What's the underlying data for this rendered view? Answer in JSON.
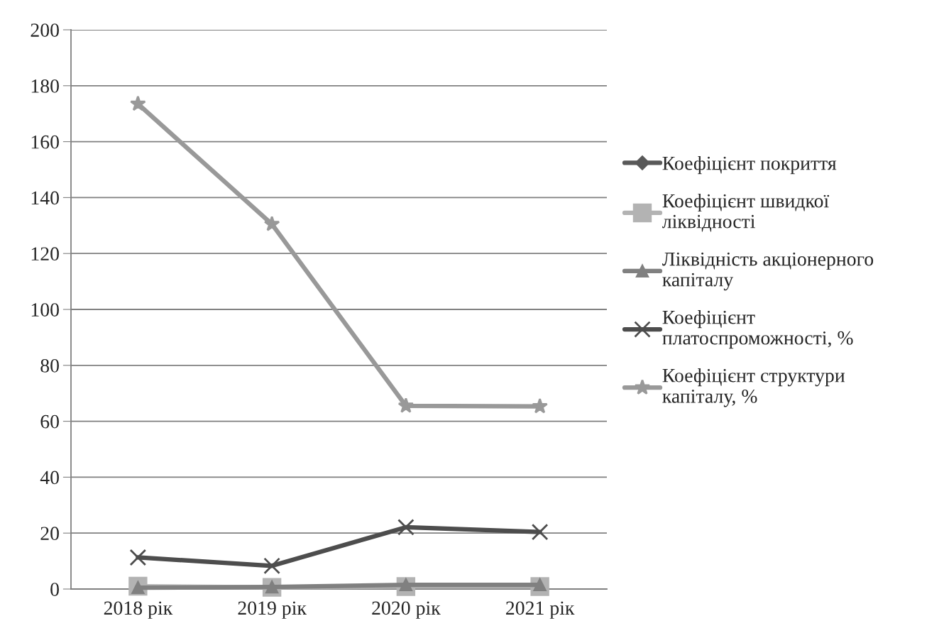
{
  "chart_data": {
    "type": "line",
    "categories": [
      "2018 рік",
      "2019 рік",
      "2020 рік",
      "2021 рік"
    ],
    "series": [
      {
        "name": "Коефіцієнт покриття",
        "color": "#595959",
        "marker": "diamond",
        "values": [
          null,
          null,
          null,
          null
        ]
      },
      {
        "name": "Коефіцієнт швидкої ліквідності",
        "color": "#b3b3b3",
        "marker": "square",
        "values": [
          1.0,
          0.6,
          0.9,
          0.9
        ]
      },
      {
        "name": "Ліквідність акціонерного капіталу",
        "color": "#808080",
        "marker": "triangle",
        "values": [
          0.5,
          0.7,
          1.5,
          1.5
        ]
      },
      {
        "name": "Коефіцієнт платоспроможності, %",
        "color": "#4d4d4d",
        "marker": "cross",
        "values": [
          11.3,
          8.3,
          22.1,
          20.4
        ]
      },
      {
        "name": "Коефіцієнт структури капіталу, %",
        "color": "#999999",
        "marker": "star",
        "values": [
          173.5,
          130.5,
          65.5,
          65.3
        ]
      }
    ],
    "ylim": [
      0,
      200
    ],
    "yticks": [
      0,
      20,
      40,
      60,
      80,
      100,
      120,
      140,
      160,
      180,
      200
    ],
    "grid": "y",
    "legend": "right",
    "line_style": "solid"
  }
}
